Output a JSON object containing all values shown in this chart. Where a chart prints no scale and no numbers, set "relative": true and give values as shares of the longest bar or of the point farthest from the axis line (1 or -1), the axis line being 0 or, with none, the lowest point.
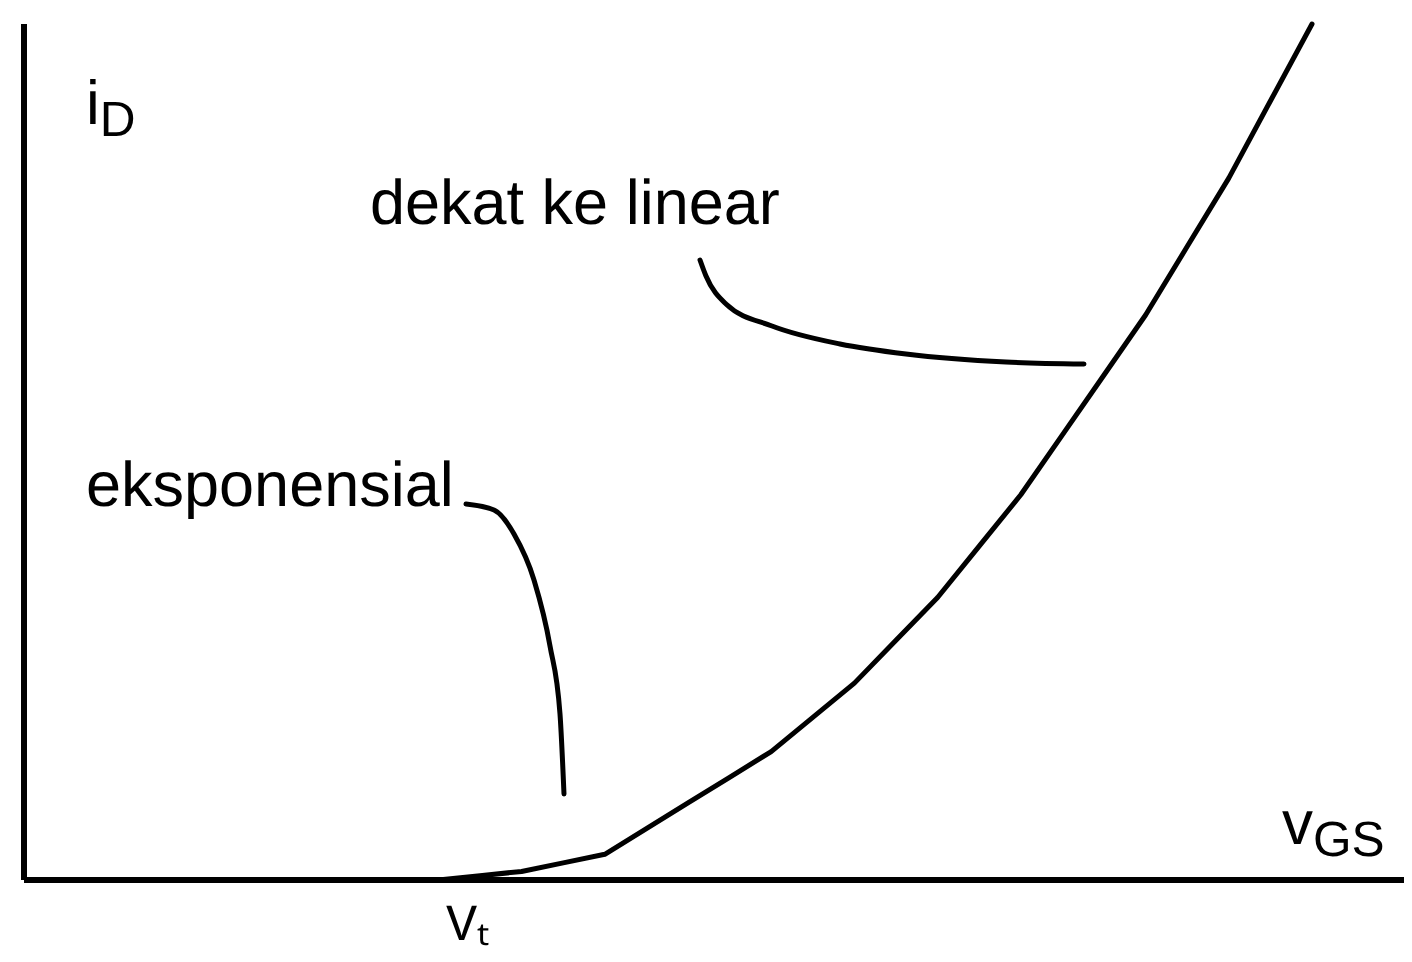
{
  "chart_data": {
    "type": "line",
    "relative": true,
    "xlabel": "v$_{GS}$",
    "ylabel": "i$_{D}$",
    "categories": [
      null,
      null,
      null,
      null,
      null,
      null,
      null,
      null,
      null,
      null,
      null,
      null,
      null,
      null,
      null,
      null,
      null,
      null,
      null,
      null,
      null,
      null,
      null,
      null,
      null,
      null,
      null,
      null,
      null,
      null,
      null,
      null,
      null,
      null
    ],
    "series": [
      {
        "color": "#000000",
        "values": [
          null,
          null,
          null,
          null,
          null,
          null,
          null,
          null,
          null,
          null,
          0,
          0.005,
          0.01,
          0.02,
          0.03,
          0.06,
          0.09,
          0.12,
          0.15,
          0.19,
          0.23,
          0.28,
          0.33,
          0.39,
          0.45,
          0.52,
          0.59,
          0.66,
          0.74,
          0.82,
          0.91,
          1.0,
          null,
          null
        ]
      }
    ],
    "annotations": [
      "dekat ke linear",
      "eksponensial",
      "Vₜ"
    ],
    "line_style": "solid",
    "grid": false
  }
}
